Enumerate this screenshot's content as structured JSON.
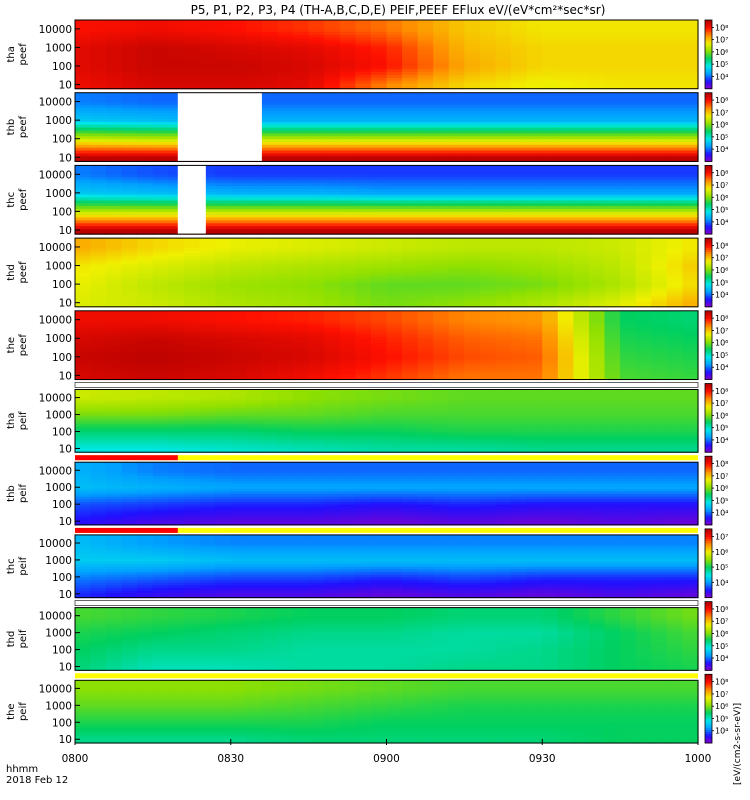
{
  "chart_data": {
    "type": "heatmap",
    "title": "P5, P1, P2, P3, P4 (TH-A,B,C,D,E) PEIF,PEEF EFlux eV/(eV*cm²*sec*sr)",
    "x_ticks": [
      "0800",
      "0830",
      "0900",
      "0930",
      "1000"
    ],
    "x_tick_hours": [
      8.0,
      8.5,
      9.0,
      9.5,
      10.0
    ],
    "xlim_hours": [
      8.0,
      10.0
    ],
    "x_annotation": [
      "hhmm",
      "2018 Feb 12"
    ],
    "ylim_eV": [
      6,
      30000
    ],
    "y_scale": "log",
    "y_ticks": [
      10,
      100,
      1000,
      10000
    ],
    "y_tick_labels": [
      "10",
      "100",
      "1000",
      "10000"
    ],
    "colorbar_side_label": "[eV/(cm2-s-sr-eV)]",
    "colormap": [
      "#8a00c8",
      "#2010ff",
      "#00a0ff",
      "#00e8e8",
      "#00d060",
      "#90e000",
      "#f0f000",
      "#ff9000",
      "#ff1000",
      "#b00000"
    ],
    "panels": [
      {
        "probe": "tha",
        "product": "peef",
        "cb_ticks": [
          "10⁴",
          "10⁵",
          "10⁶",
          "10⁷",
          "10⁸"
        ],
        "cb_range": [
          3,
          8.6
        ],
        "gap_hours": [],
        "top_bar": null,
        "time_hours": [
          8.0,
          8.25,
          8.5,
          8.75,
          9.0,
          9.25,
          9.5,
          9.75,
          10.0
        ],
        "energy_eV": [
          10,
          100,
          1000,
          10000
        ],
        "log_eflux_grid": [
          [
            8.1,
            8.3,
            8.3,
            8.2,
            7.4,
            6.9,
            6.7,
            6.8,
            6.8
          ],
          [
            8.2,
            8.4,
            8.4,
            8.3,
            8.0,
            7.2,
            6.9,
            6.9,
            6.9
          ],
          [
            8.2,
            8.4,
            8.3,
            8.2,
            7.9,
            7.1,
            6.9,
            6.9,
            6.9
          ],
          [
            8.0,
            8.1,
            8.0,
            7.8,
            7.5,
            7.0,
            6.8,
            6.8,
            6.8
          ]
        ]
      },
      {
        "probe": "thb",
        "product": "peef",
        "cb_ticks": [
          "10⁴",
          "10⁵",
          "10⁶",
          "10⁷",
          "10⁸"
        ],
        "cb_range": [
          3,
          8.6
        ],
        "gap_hours": [
          [
            8.33,
            8.6
          ]
        ],
        "top_bar": null,
        "time_hours": [
          8.0,
          8.25,
          8.5,
          8.75,
          9.0,
          9.25,
          9.5,
          9.75,
          10.0
        ],
        "energy_eV": [
          10,
          100,
          1000,
          10000
        ],
        "log_eflux_grid": [
          [
            8.5,
            8.5,
            8.5,
            8.5,
            8.5,
            8.5,
            8.5,
            8.5,
            8.5
          ],
          [
            6.5,
            6.4,
            6.4,
            6.4,
            6.4,
            6.4,
            6.4,
            6.4,
            6.4
          ],
          [
            4.6,
            4.5,
            4.4,
            4.4,
            4.4,
            4.4,
            4.4,
            4.4,
            4.4
          ],
          [
            4.1,
            4.0,
            4.0,
            4.0,
            4.0,
            4.0,
            4.0,
            4.0,
            4.0
          ]
        ]
      },
      {
        "probe": "thc",
        "product": "peef",
        "cb_ticks": [
          "10⁴",
          "10⁵",
          "10⁶",
          "10⁷",
          "10⁸"
        ],
        "cb_range": [
          3,
          8.6
        ],
        "gap_hours": [
          [
            8.33,
            8.42
          ]
        ],
        "top_bar": null,
        "time_hours": [
          8.0,
          8.25,
          8.5,
          8.75,
          9.0,
          9.25,
          9.5,
          9.75,
          10.0
        ],
        "energy_eV": [
          10,
          100,
          1000,
          10000
        ],
        "log_eflux_grid": [
          [
            8.5,
            8.5,
            8.5,
            8.5,
            8.5,
            8.5,
            8.5,
            8.5,
            8.5
          ],
          [
            6.4,
            6.4,
            6.4,
            6.4,
            6.4,
            6.4,
            6.4,
            6.4,
            6.4
          ],
          [
            4.6,
            4.5,
            4.4,
            4.4,
            4.3,
            4.3,
            4.3,
            4.3,
            4.3
          ],
          [
            4.1,
            3.9,
            3.8,
            3.8,
            3.8,
            3.8,
            3.8,
            3.8,
            3.8
          ]
        ]
      },
      {
        "probe": "thd",
        "product": "peef",
        "cb_ticks": [
          "10⁴",
          "10⁵",
          "10⁶",
          "10⁷",
          "10⁸"
        ],
        "cb_range": [
          3,
          8.6
        ],
        "gap_hours": [],
        "top_bar": null,
        "time_hours": [
          8.0,
          8.25,
          8.5,
          8.75,
          9.0,
          9.25,
          9.5,
          9.75,
          10.0
        ],
        "energy_eV": [
          10,
          100,
          1000,
          10000
        ],
        "log_eflux_grid": [
          [
            6.6,
            6.5,
            6.3,
            6.2,
            6.0,
            6.1,
            6.3,
            6.6,
            7.2
          ],
          [
            6.7,
            6.4,
            6.2,
            6.1,
            5.9,
            5.9,
            6.0,
            6.3,
            6.9
          ],
          [
            6.8,
            6.6,
            6.4,
            6.3,
            6.2,
            6.1,
            6.2,
            6.4,
            7.0
          ],
          [
            7.2,
            6.9,
            6.7,
            6.6,
            6.5,
            6.4,
            6.4,
            6.5,
            6.8
          ]
        ]
      },
      {
        "probe": "the",
        "product": "peef",
        "cb_ticks": [
          "10⁴",
          "10⁵",
          "10⁶",
          "10⁷",
          "10⁸"
        ],
        "cb_range": [
          3,
          8.6
        ],
        "gap_hours": [],
        "top_bar": null,
        "time_hours": [
          8.0,
          8.25,
          8.5,
          8.75,
          9.0,
          9.25,
          9.5,
          9.75,
          10.0
        ],
        "energy_eV": [
          10,
          100,
          1000,
          10000
        ],
        "log_eflux_grid": [
          [
            8.3,
            8.4,
            8.3,
            8.1,
            7.8,
            7.5,
            7.5,
            5.8,
            5.7
          ],
          [
            8.4,
            8.5,
            8.4,
            8.3,
            8.0,
            7.7,
            7.6,
            5.7,
            5.6
          ],
          [
            8.3,
            8.4,
            8.3,
            8.2,
            7.9,
            7.6,
            7.5,
            5.6,
            5.5
          ],
          [
            8.1,
            8.1,
            8.0,
            7.9,
            7.7,
            7.4,
            7.3,
            5.5,
            5.4
          ]
        ]
      },
      {
        "probe": "tha",
        "product": "peif",
        "cb_ticks": [
          "10⁴",
          "10⁵",
          "10⁶",
          "10⁷",
          "10⁸"
        ],
        "cb_range": [
          3,
          8.6
        ],
        "gap_hours": [],
        "top_bar": "white",
        "time_hours": [
          8.0,
          8.25,
          8.5,
          8.75,
          9.0,
          9.25,
          9.5,
          9.75,
          10.0
        ],
        "energy_eV": [
          10,
          100,
          1000,
          10000
        ],
        "log_eflux_grid": [
          [
            4.9,
            4.9,
            5.0,
            5.1,
            5.2,
            5.2,
            5.3,
            5.3,
            5.3
          ],
          [
            5.4,
            5.4,
            5.4,
            5.5,
            5.5,
            5.6,
            5.6,
            5.6,
            5.6
          ],
          [
            6.0,
            6.0,
            5.9,
            5.9,
            5.8,
            5.8,
            5.8,
            5.8,
            5.8
          ],
          [
            6.5,
            6.4,
            6.3,
            6.1,
            6.0,
            5.9,
            5.9,
            5.9,
            5.9
          ]
        ]
      },
      {
        "probe": "thb",
        "product": "peif",
        "cb_ticks": [
          "10⁴",
          "10⁵",
          "10⁶",
          "10⁷",
          "10⁸"
        ],
        "cb_range": [
          3,
          8.6
        ],
        "gap_hours": [],
        "top_bar": "red",
        "time_hours": [
          8.0,
          8.25,
          8.5,
          8.75,
          9.0,
          9.25,
          9.5,
          9.75,
          10.0
        ],
        "energy_eV": [
          10,
          100,
          1000,
          10000
        ],
        "log_eflux_grid": [
          [
            3.6,
            3.4,
            3.3,
            3.3,
            3.2,
            3.3,
            3.2,
            3.3,
            3.2
          ],
          [
            3.9,
            3.8,
            3.7,
            3.7,
            3.6,
            3.7,
            3.6,
            3.6,
            3.6
          ],
          [
            4.5,
            4.4,
            4.3,
            4.3,
            4.3,
            4.3,
            4.3,
            4.3,
            4.3
          ],
          [
            4.4,
            4.1,
            4.0,
            4.0,
            4.0,
            4.0,
            4.0,
            4.0,
            4.0
          ]
        ]
      },
      {
        "probe": "thc",
        "product": "peif",
        "cb_ticks": [
          "10⁴",
          "10⁵",
          "10⁶",
          "10⁷"
        ],
        "cb_range": [
          3,
          7.5
        ],
        "gap_hours": [],
        "top_bar": "red",
        "time_hours": [
          8.0,
          8.25,
          8.5,
          8.75,
          9.0,
          9.25,
          9.5,
          9.75,
          10.0
        ],
        "energy_eV": [
          10,
          100,
          1000,
          10000
        ],
        "log_eflux_grid": [
          [
            3.6,
            3.4,
            3.3,
            3.3,
            3.2,
            3.3,
            3.2,
            3.3,
            3.2
          ],
          [
            3.9,
            3.8,
            3.7,
            3.7,
            3.6,
            3.7,
            3.6,
            3.6,
            3.6
          ],
          [
            4.3,
            4.3,
            4.2,
            4.2,
            4.2,
            4.2,
            4.2,
            4.2,
            4.2
          ],
          [
            4.2,
            4.0,
            3.9,
            3.9,
            3.9,
            3.9,
            3.9,
            3.9,
            3.9
          ]
        ]
      },
      {
        "probe": "thd",
        "product": "peif",
        "cb_ticks": [
          "10⁴",
          "10⁵",
          "10⁶",
          "10⁷",
          "10⁸"
        ],
        "cb_range": [
          3,
          8.6
        ],
        "gap_hours": [],
        "top_bar": "white",
        "time_hours": [
          8.0,
          8.25,
          8.5,
          8.75,
          9.0,
          9.25,
          9.5,
          9.75,
          10.0
        ],
        "energy_eV": [
          10,
          100,
          1000,
          10000
        ],
        "log_eflux_grid": [
          [
            5.4,
            5.1,
            5.1,
            5.2,
            5.2,
            5.3,
            5.3,
            5.5,
            5.6
          ],
          [
            5.5,
            5.3,
            5.3,
            5.2,
            5.2,
            5.2,
            5.3,
            5.5,
            5.7
          ],
          [
            5.6,
            5.5,
            5.4,
            5.3,
            5.3,
            5.2,
            5.2,
            5.5,
            5.8
          ],
          [
            5.8,
            5.7,
            5.6,
            5.5,
            5.5,
            5.4,
            5.4,
            5.7,
            6.0
          ]
        ]
      },
      {
        "probe": "the",
        "product": "peif",
        "cb_ticks": [
          "10⁴",
          "10⁵",
          "10⁶",
          "10⁷",
          "10⁸"
        ],
        "cb_range": [
          3,
          8.6
        ],
        "gap_hours": [],
        "top_bar": "yellow",
        "time_hours": [
          8.0,
          8.25,
          8.5,
          8.75,
          9.0,
          9.25,
          9.5,
          9.75,
          10.0
        ],
        "energy_eV": [
          10,
          100,
          1000,
          10000
        ],
        "log_eflux_grid": [
          [
            5.3,
            5.3,
            5.3,
            5.4,
            5.4,
            5.4,
            5.4,
            5.5,
            5.5
          ],
          [
            5.6,
            5.6,
            5.6,
            5.6,
            5.5,
            5.5,
            5.5,
            5.5,
            5.5
          ],
          [
            5.9,
            5.9,
            5.9,
            5.8,
            5.7,
            5.6,
            5.6,
            5.6,
            5.6
          ],
          [
            6.1,
            6.1,
            6.1,
            6.0,
            5.9,
            5.8,
            5.8,
            5.8,
            5.8
          ]
        ]
      }
    ]
  }
}
